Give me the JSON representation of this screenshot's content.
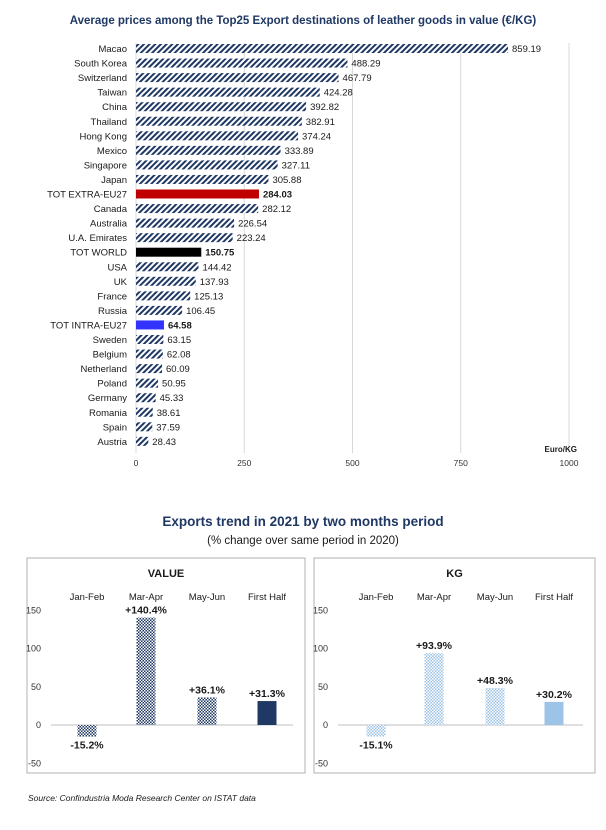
{
  "source": "Source: Confindustria Moda Research Center on ISTAT data",
  "colors": {
    "title": "#1f3864",
    "bar_hatch": "#1f3864",
    "extra_eu": "#c00000",
    "world": "#000000",
    "intra_eu": "#3333ff",
    "value_bar": "#1f3864",
    "kg_bar": "#9dc3e6"
  },
  "chart_data": [
    {
      "type": "bar",
      "orientation": "horizontal",
      "title": "Average prices among the Top25 Export destinations of leather goods in value (€/KG)",
      "unit_label": "Euro/KG",
      "xlim": [
        0,
        1000
      ],
      "xticks": [
        "0",
        "250",
        "500",
        "750",
        "1000"
      ],
      "grid": "vertical",
      "categories": [
        "Macao",
        "South Korea",
        "Switzerland",
        "Taiwan",
        "China",
        "Thailand",
        "Hong Kong",
        "Mexico",
        "Singapore",
        "Japan",
        "TOT EXTRA-EU27",
        "Canada",
        "Australia",
        "U.A. Emirates",
        "TOT WORLD",
        "USA",
        "UK",
        "France",
        "Russia",
        "TOT INTRA-EU27",
        "Sweden",
        "Belgium",
        "Netherland",
        "Poland",
        "Germany",
        "Romania",
        "Spain",
        "Austria"
      ],
      "values": [
        859.19,
        488.29,
        467.79,
        424.28,
        392.82,
        382.91,
        374.24,
        333.89,
        327.11,
        305.88,
        284.03,
        282.12,
        226.54,
        223.24,
        150.75,
        144.42,
        137.93,
        125.13,
        106.45,
        64.58,
        63.15,
        62.08,
        60.09,
        50.95,
        45.33,
        38.61,
        37.59,
        28.43
      ],
      "labels": [
        "859.19",
        "488.29",
        "467.79",
        "424.28",
        "392.82",
        "382.91",
        "374.24",
        "333.89",
        "327.11",
        "305.88",
        "284.03",
        "282.12",
        "226.54",
        "223.24",
        "150.75",
        "144.42",
        "137.93",
        "125.13",
        "106.45",
        "64.58",
        "63.15",
        "62.08",
        "60.09",
        "50.95",
        "45.33",
        "38.61",
        "37.59",
        "28.43"
      ],
      "highlights": {
        "TOT EXTRA-EU27": "#c00000",
        "TOT WORLD": "#000000",
        "TOT INTRA-EU27": "#3333ff"
      }
    },
    {
      "type": "bar",
      "title": "Exports trend in 2021 by two months period",
      "subtitle": "(% change over same period in 2020)",
      "panels": [
        {
          "name": "VALUE",
          "categories": [
            "Jan-Feb",
            "Mar-Apr",
            "May-Jun",
            "First Half"
          ],
          "values": [
            -15.2,
            140.4,
            36.1,
            31.3
          ],
          "labels": [
            "-15.2%",
            "+140.4%",
            "+36.1%",
            "+31.3%"
          ],
          "ylim": [
            -50,
            150
          ],
          "yticks": [
            "150",
            "100",
            "50",
            "0",
            "-50"
          ]
        },
        {
          "name": "KG",
          "categories": [
            "Jan-Feb",
            "Mar-Apr",
            "May-Jun",
            "First Half"
          ],
          "values": [
            -15.1,
            93.9,
            48.3,
            30.2
          ],
          "labels": [
            "-15.1%",
            "+93.9%",
            "+48.3%",
            "+30.2%"
          ],
          "ylim": [
            -50,
            150
          ],
          "yticks": [
            "150",
            "100",
            "50",
            "0",
            "-50"
          ]
        }
      ]
    }
  ]
}
